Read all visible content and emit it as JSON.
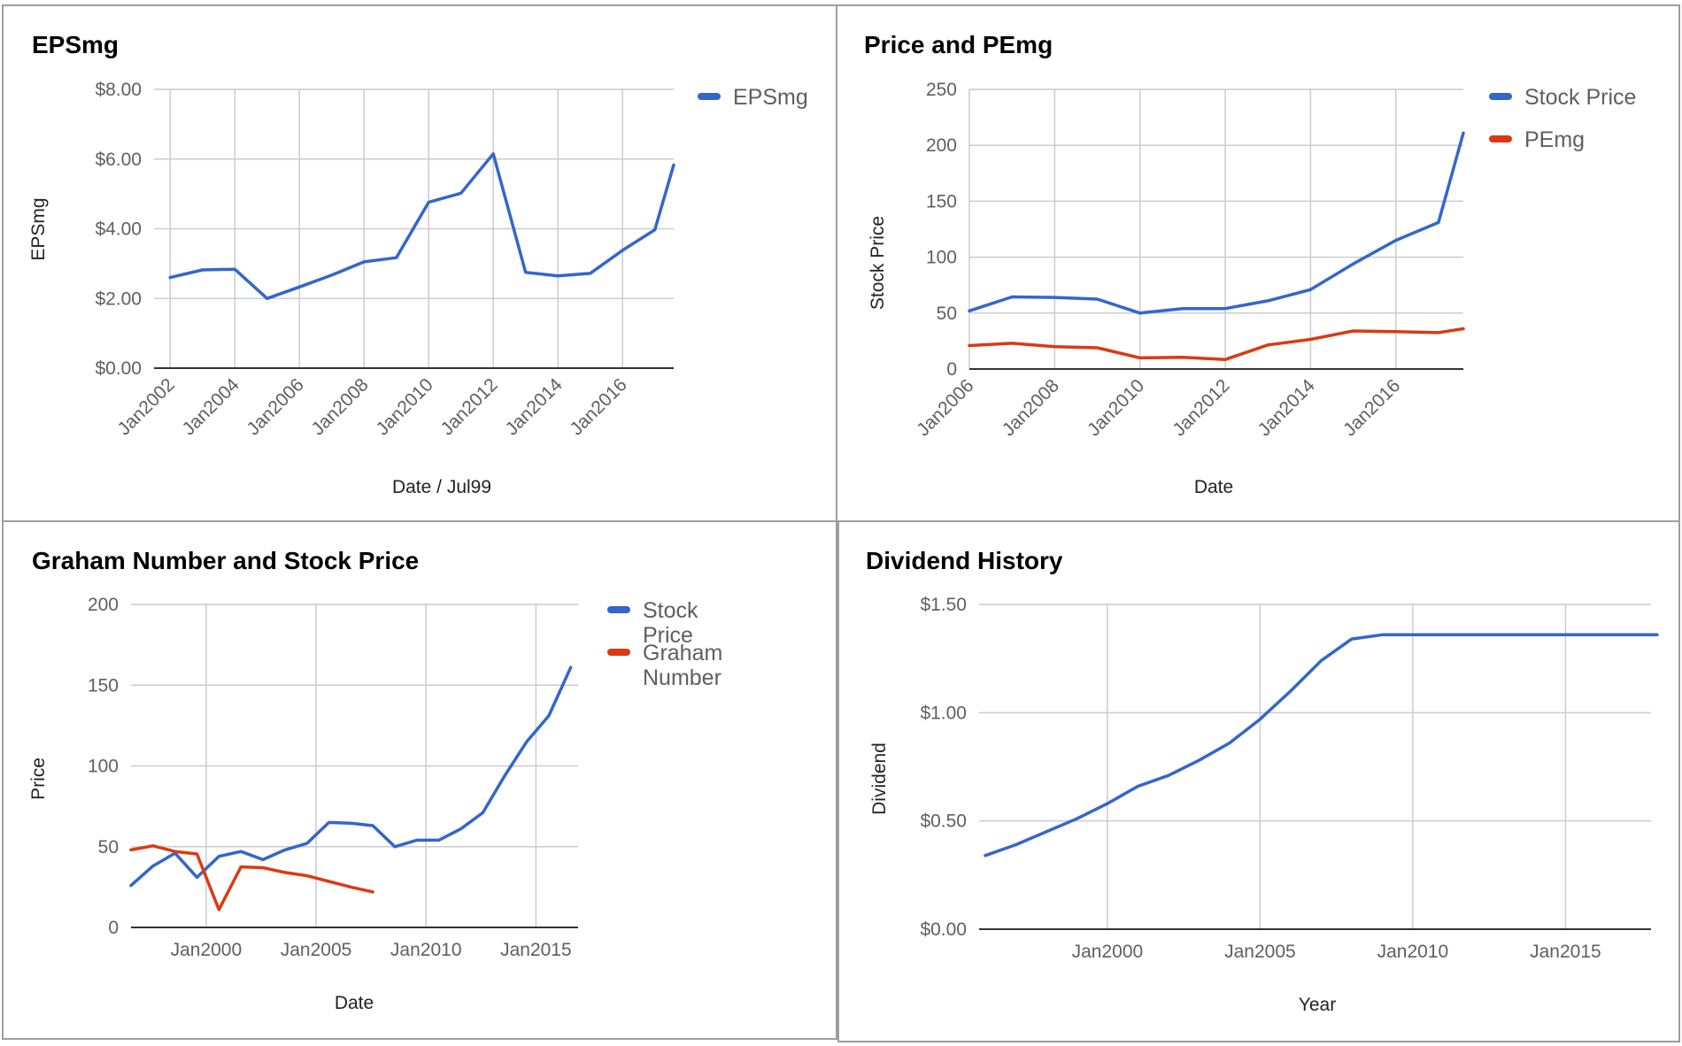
{
  "chart_data": [
    {
      "id": "eps",
      "type": "line",
      "title": "EPSmg",
      "xlabel": "Date / Jul99",
      "ylabel": "EPSmg",
      "x_ticks": [
        "Jan2002",
        "Jan2004",
        "Jan2006",
        "Jan2008",
        "Jan2010",
        "Jan2012",
        "Jan2014",
        "Jan2016"
      ],
      "y_ticks": [
        "$0.00",
        "$2.00",
        "$4.00",
        "$6.00",
        "$8.00"
      ],
      "ylim": [
        0,
        8
      ],
      "grid": true,
      "legend_position": "right",
      "series": [
        {
          "name": "EPSmg",
          "color": "#3366cc",
          "points": [
            [
              "2002-01",
              2.6
            ],
            [
              "2003-01",
              2.82
            ],
            [
              "2004-01",
              2.84
            ],
            [
              "2005-01",
              2.0
            ],
            [
              "2006-01",
              2.33
            ],
            [
              "2007-01",
              2.67
            ],
            [
              "2008-01",
              3.05
            ],
            [
              "2009-01",
              3.17
            ],
            [
              "2010-01",
              4.76
            ],
            [
              "2011-01",
              5.02
            ],
            [
              "2012-01",
              6.15
            ],
            [
              "2013-01",
              2.75
            ],
            [
              "2014-01",
              2.65
            ],
            [
              "2015-01",
              2.72
            ],
            [
              "2016-01",
              3.38
            ],
            [
              "2017-01",
              3.97
            ],
            [
              "2017-08",
              5.83
            ]
          ]
        }
      ]
    },
    {
      "id": "pe",
      "type": "line",
      "title": "Price and PEmg",
      "xlabel": "Date",
      "ylabel": "Stock Price",
      "x_ticks": [
        "Jan2006",
        "Jan2008",
        "Jan2010",
        "Jan2012",
        "Jan2014",
        "Jan2016"
      ],
      "y_ticks": [
        "0",
        "50",
        "100",
        "150",
        "200",
        "250"
      ],
      "ylim": [
        0,
        250
      ],
      "grid": true,
      "legend_position": "right",
      "series": [
        {
          "name": "Stock Price",
          "color": "#3366cc",
          "points": [
            [
              "2006-01",
              52
            ],
            [
              "2007-01",
              64.5
            ],
            [
              "2008-01",
              64
            ],
            [
              "2009-01",
              62.5
            ],
            [
              "2010-01",
              50
            ],
            [
              "2011-01",
              54
            ],
            [
              "2012-01",
              54
            ],
            [
              "2013-01",
              61
            ],
            [
              "2014-01",
              71
            ],
            [
              "2015-01",
              94
            ],
            [
              "2016-01",
              115
            ],
            [
              "2017-01",
              131
            ],
            [
              "2017-08",
              211
            ]
          ]
        },
        {
          "name": "PEmg",
          "color": "#dc3912",
          "points": [
            [
              "2006-01",
              21
            ],
            [
              "2007-01",
              23
            ],
            [
              "2008-01",
              20
            ],
            [
              "2009-01",
              19
            ],
            [
              "2010-01",
              10
            ],
            [
              "2011-01",
              10.5
            ],
            [
              "2012-01",
              8.5
            ],
            [
              "2013-01",
              21.5
            ],
            [
              "2014-01",
              26.5
            ],
            [
              "2015-01",
              34
            ],
            [
              "2016-01",
              33.5
            ],
            [
              "2017-01",
              32.5
            ],
            [
              "2017-08",
              36
            ]
          ]
        }
      ]
    },
    {
      "id": "graham",
      "type": "line",
      "title": "Graham Number and Stock Price",
      "xlabel": "Date",
      "ylabel": "Price",
      "x_ticks": [
        "Jan2000",
        "Jan2005",
        "Jan2010",
        "Jan2015"
      ],
      "y_ticks": [
        "0",
        "50",
        "100",
        "150",
        "200"
      ],
      "ylim": [
        0,
        200
      ],
      "grid": true,
      "legend_position": "right",
      "series": [
        {
          "name": "Stock Price",
          "color": "#3366cc",
          "points": [
            [
              "1996-08",
              26
            ],
            [
              "1997-08",
              38
            ],
            [
              "1998-08",
              46
            ],
            [
              "1999-08",
              31
            ],
            [
              "2000-08",
              44
            ],
            [
              "2001-08",
              47
            ],
            [
              "2002-08",
              42
            ],
            [
              "2003-08",
              48
            ],
            [
              "2004-08",
              52
            ],
            [
              "2005-08",
              65
            ],
            [
              "2006-08",
              64.5
            ],
            [
              "2007-08",
              63
            ],
            [
              "2008-08",
              50
            ],
            [
              "2009-08",
              54
            ],
            [
              "2010-08",
              54
            ],
            [
              "2011-08",
              61
            ],
            [
              "2012-08",
              71
            ],
            [
              "2013-08",
              94
            ],
            [
              "2014-08",
              115
            ],
            [
              "2015-08",
              131
            ],
            [
              "2016-08",
              161
            ]
          ]
        },
        {
          "name": "Graham Number",
          "color": "#dc3912",
          "points": [
            [
              "1996-08",
              48
            ],
            [
              "1997-08",
              50.5
            ],
            [
              "1998-08",
              47
            ],
            [
              "1999-08",
              45.5
            ],
            [
              "2000-08",
              11
            ],
            [
              "2001-08",
              37.5
            ],
            [
              "2002-08",
              37
            ],
            [
              "2003-08",
              34
            ],
            [
              "2004-08",
              32
            ],
            [
              "2005-08",
              28.5
            ],
            [
              "2006-08",
              25
            ],
            [
              "2007-08",
              22
            ]
          ]
        }
      ]
    },
    {
      "id": "dividend",
      "type": "line",
      "title": "Dividend History",
      "xlabel": "Year",
      "ylabel": "Dividend",
      "x_ticks": [
        "Jan2000",
        "Jan2005",
        "Jan2010",
        "Jan2015"
      ],
      "y_ticks": [
        "$0.00",
        "$0.50",
        "$1.00",
        "$1.50"
      ],
      "ylim": [
        0,
        1.5
      ],
      "grid": true,
      "legend_position": "none",
      "series": [
        {
          "name": "",
          "color": "#3366cc",
          "points": [
            [
              "1996-01",
              0.34
            ],
            [
              "1997-01",
              0.39
            ],
            [
              "1998-01",
              0.45
            ],
            [
              "1999-01",
              0.51
            ],
            [
              "2000-01",
              0.58
            ],
            [
              "2001-01",
              0.66
            ],
            [
              "2002-01",
              0.71
            ],
            [
              "2003-01",
              0.78
            ],
            [
              "2004-01",
              0.86
            ],
            [
              "2005-01",
              0.97
            ],
            [
              "2006-01",
              1.1
            ],
            [
              "2007-01",
              1.24
            ],
            [
              "2008-01",
              1.34
            ],
            [
              "2009-01",
              1.36
            ],
            [
              "2010-01",
              1.36
            ],
            [
              "2011-01",
              1.36
            ],
            [
              "2012-01",
              1.36
            ],
            [
              "2013-01",
              1.36
            ],
            [
              "2014-01",
              1.36
            ],
            [
              "2015-01",
              1.36
            ],
            [
              "2016-01",
              1.36
            ],
            [
              "2017-01",
              1.36
            ],
            [
              "2018-01",
              1.36
            ]
          ]
        }
      ]
    }
  ]
}
